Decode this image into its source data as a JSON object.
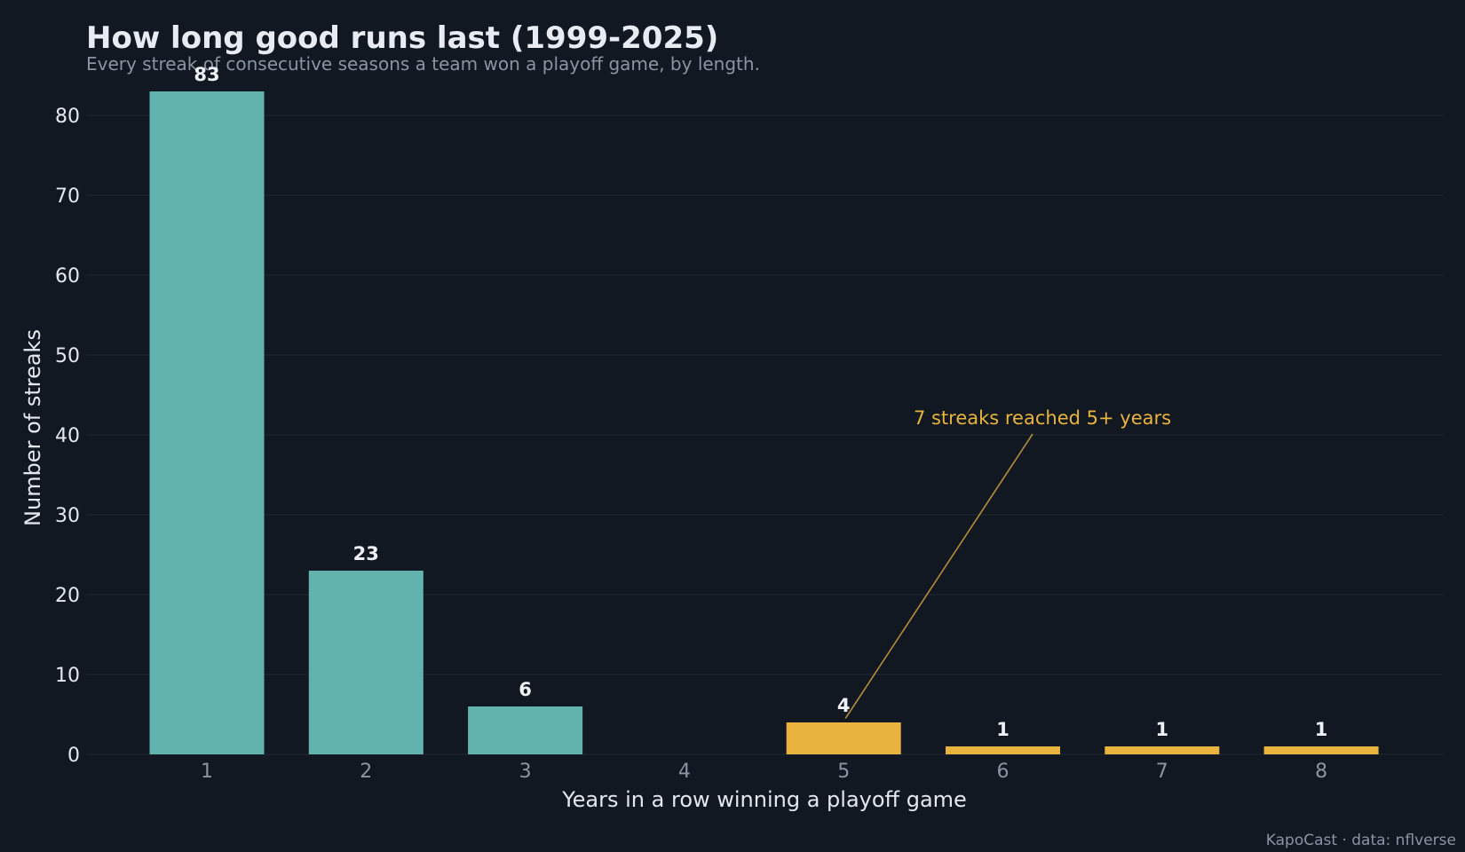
{
  "chart_data": {
    "type": "bar",
    "title": "How long good runs last (1999-2025)",
    "subtitle": "Every streak of consecutive seasons a team won a playoff game, by length.",
    "xlabel": "Years in a row winning a playoff game",
    "ylabel": "Number of streaks",
    "categories": [
      "1",
      "2",
      "3",
      "4",
      "5",
      "6",
      "7",
      "8"
    ],
    "values": [
      83,
      23,
      6,
      0,
      4,
      1,
      1,
      1
    ],
    "data_labels": [
      "83",
      "23",
      "6",
      "",
      "4",
      "1",
      "1",
      "1"
    ],
    "highlight_from_category": "5",
    "ylim": [
      0,
      85
    ],
    "yticks": [
      0,
      10,
      20,
      30,
      40,
      50,
      60,
      70,
      80
    ],
    "grid": "horizontal",
    "legend": "none",
    "annotation": {
      "text": "7 streaks reached 5+ years",
      "points_to_category": "5",
      "points_to_value": 4.5
    },
    "colors": {
      "background": "#111821",
      "base_bar": "#62b3ad",
      "highlight_bar": "#e8b33f",
      "grid": "#1b232d",
      "annotation": "#e8b33f"
    },
    "credit": "KapoCast · data: nflverse"
  }
}
